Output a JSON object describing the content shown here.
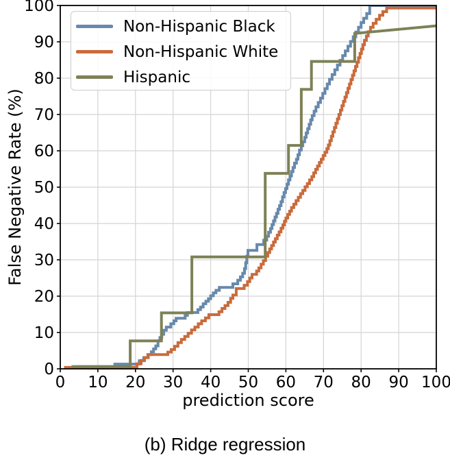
{
  "figure": {
    "caption": "(b) Ridge regression"
  },
  "chart_data": {
    "type": "line",
    "style": "step",
    "title": "",
    "xlabel": "prediction score",
    "ylabel": "False Negative Rate (%)",
    "xlim": [
      0,
      100
    ],
    "ylim": [
      0,
      100
    ],
    "xticks": [
      0,
      10,
      20,
      30,
      40,
      50,
      60,
      70,
      80,
      90,
      100
    ],
    "yticks": [
      0,
      10,
      20,
      30,
      40,
      50,
      60,
      70,
      80,
      90,
      100
    ],
    "grid": true,
    "grid_color": "#d4d4d4",
    "axis_color": "#000000",
    "legend_position": "upper-left",
    "series": [
      {
        "name": "Non-Hispanic Black",
        "color": "#6789ab",
        "points": [
          [
            4,
            0.6
          ],
          [
            14.5,
            1.3
          ],
          [
            21,
            2.2
          ],
          [
            22.2,
            3.1
          ],
          [
            23.4,
            3.9
          ],
          [
            24.2,
            4.7
          ],
          [
            24.8,
            5.5
          ],
          [
            25.4,
            6.3
          ],
          [
            26,
            7.7
          ],
          [
            26.5,
            8.6
          ],
          [
            27,
            9.5
          ],
          [
            27.5,
            10.6
          ],
          [
            28.2,
            11.5
          ],
          [
            29.4,
            12.4
          ],
          [
            30.2,
            13.2
          ],
          [
            30.8,
            13.9
          ],
          [
            33.2,
            14.7
          ],
          [
            33.8,
            15.5
          ],
          [
            36.6,
            16.3
          ],
          [
            37.3,
            17
          ],
          [
            38,
            17.9
          ],
          [
            38.7,
            18.6
          ],
          [
            39.4,
            19.3
          ],
          [
            40,
            20.1
          ],
          [
            40.7,
            20.9
          ],
          [
            41.4,
            21.6
          ],
          [
            42.3,
            22.4
          ],
          [
            45.9,
            23.4
          ],
          [
            47.2,
            24.4
          ],
          [
            47.9,
            25.3
          ],
          [
            48.5,
            26.3
          ],
          [
            49,
            27.6
          ],
          [
            49.3,
            29.2
          ],
          [
            49.6,
            31
          ],
          [
            49.9,
            32.6
          ],
          [
            52.3,
            34.2
          ],
          [
            54.1,
            35.4
          ],
          [
            54.9,
            36.5
          ],
          [
            55.4,
            37.6
          ],
          [
            55.9,
            38.6
          ],
          [
            56.3,
            39.7
          ],
          [
            56.7,
            40.7
          ],
          [
            57.1,
            41.8
          ],
          [
            57.5,
            42.8
          ],
          [
            57.9,
            43.9
          ],
          [
            58.3,
            44.9
          ],
          [
            58.7,
            46
          ],
          [
            59.1,
            47.3
          ],
          [
            59.5,
            48.5
          ],
          [
            59.9,
            49.6
          ],
          [
            60.3,
            50.8
          ],
          [
            60.7,
            52
          ],
          [
            61.1,
            53.1
          ],
          [
            61.5,
            54.3
          ],
          [
            61.9,
            55.4
          ],
          [
            62.3,
            56.6
          ],
          [
            62.8,
            57.7
          ],
          [
            63.2,
            58.9
          ],
          [
            63.6,
            60.2
          ],
          [
            64.1,
            61.4
          ],
          [
            64.5,
            62.5
          ],
          [
            65,
            63.7
          ],
          [
            65.4,
            64.9
          ],
          [
            65.8,
            66.1
          ],
          [
            66.2,
            67.3
          ],
          [
            66.6,
            68.5
          ],
          [
            67,
            69.7
          ],
          [
            67.5,
            70.9
          ],
          [
            68,
            72.1
          ],
          [
            68.6,
            73.3
          ],
          [
            69.2,
            74.5
          ],
          [
            69.8,
            75.8
          ],
          [
            70.4,
            77.1
          ],
          [
            71,
            78.4
          ],
          [
            71.6,
            79.7
          ],
          [
            72.3,
            81
          ],
          [
            73,
            82.3
          ],
          [
            73.7,
            83.6
          ],
          [
            74.4,
            84.9
          ],
          [
            75.1,
            86.2
          ],
          [
            75.8,
            87.5
          ],
          [
            76.5,
            88.8
          ],
          [
            77.2,
            90.1
          ],
          [
            77.9,
            91.4
          ],
          [
            78.6,
            92.7
          ],
          [
            79.3,
            94
          ],
          [
            80,
            95.3
          ],
          [
            80.7,
            96.5
          ],
          [
            81.5,
            97.8
          ],
          [
            82.3,
            100
          ],
          [
            100,
            100,
            "L"
          ]
        ]
      },
      {
        "name": "Non-Hispanic White",
        "color": "#c96b3c",
        "points": [
          [
            1,
            0.4
          ],
          [
            20.4,
            1.4
          ],
          [
            21.5,
            2.3
          ],
          [
            22.4,
            3.1
          ],
          [
            23.3,
            3.9
          ],
          [
            28.6,
            4.6
          ],
          [
            29.5,
            5.3
          ],
          [
            30.4,
            6.2
          ],
          [
            31.3,
            7.2
          ],
          [
            32.2,
            8.1
          ],
          [
            33.1,
            8.9
          ],
          [
            34,
            9.8
          ],
          [
            34.9,
            10.7
          ],
          [
            35.8,
            11.5
          ],
          [
            36.7,
            12.4
          ],
          [
            37.6,
            13.2
          ],
          [
            38.6,
            14
          ],
          [
            39.5,
            14.9
          ],
          [
            42.2,
            15.7
          ],
          [
            43,
            16.6
          ],
          [
            43.8,
            17.4
          ],
          [
            44.6,
            18.3
          ],
          [
            45.3,
            19.4
          ],
          [
            45.9,
            20.3
          ],
          [
            46.8,
            22.1
          ],
          [
            48.9,
            23
          ],
          [
            49.8,
            24
          ],
          [
            50.4,
            25
          ],
          [
            51,
            26
          ],
          [
            52.2,
            26.9
          ],
          [
            52.8,
            27.8
          ],
          [
            53.4,
            28.8
          ],
          [
            54,
            29.8
          ],
          [
            54.6,
            31
          ],
          [
            55.2,
            32
          ],
          [
            55.7,
            33
          ],
          [
            56.2,
            33.9
          ],
          [
            56.7,
            34.9
          ],
          [
            57.2,
            35.8
          ],
          [
            57.7,
            36.8
          ],
          [
            58.2,
            37.7
          ],
          [
            58.7,
            38.7
          ],
          [
            59.2,
            39.6
          ],
          [
            59.6,
            40.6
          ],
          [
            60,
            41.5
          ],
          [
            60.5,
            42.5
          ],
          [
            61,
            43.4
          ],
          [
            61.5,
            44.4
          ],
          [
            62.1,
            45.3
          ],
          [
            62.7,
            46.3
          ],
          [
            63.3,
            47.2
          ],
          [
            63.9,
            48.2
          ],
          [
            64.5,
            49.1
          ],
          [
            65.1,
            50.1
          ],
          [
            65.7,
            51
          ],
          [
            66.3,
            52
          ],
          [
            66.9,
            52.9
          ],
          [
            67.4,
            53.9
          ],
          [
            67.9,
            54.9
          ],
          [
            68.4,
            55.8
          ],
          [
            68.9,
            56.8
          ],
          [
            69.4,
            57.7
          ],
          [
            69.9,
            58.7
          ],
          [
            70.4,
            59.6
          ],
          [
            70.9,
            60.6
          ],
          [
            71.3,
            61.6
          ],
          [
            71.7,
            62.8
          ],
          [
            72.1,
            64
          ],
          [
            72.5,
            65.2
          ],
          [
            72.9,
            66.4
          ],
          [
            73.3,
            67.6
          ],
          [
            73.7,
            68.8
          ],
          [
            74.1,
            70
          ],
          [
            74.5,
            71.2
          ],
          [
            74.9,
            72.4
          ],
          [
            75.3,
            73.6
          ],
          [
            75.7,
            74.8
          ],
          [
            76.1,
            76
          ],
          [
            76.5,
            77.2
          ],
          [
            76.9,
            78.4
          ],
          [
            77.3,
            79.6
          ],
          [
            77.7,
            80.8
          ],
          [
            78.1,
            82
          ],
          [
            78.5,
            83.2
          ],
          [
            78.9,
            84.4
          ],
          [
            79.3,
            85.6
          ],
          [
            79.7,
            86.8
          ],
          [
            80.1,
            88
          ],
          [
            80.5,
            89.2
          ],
          [
            80.9,
            90.4
          ],
          [
            81.4,
            91.6
          ],
          [
            81.9,
            92.8
          ],
          [
            82.5,
            94
          ],
          [
            83.2,
            95.1
          ],
          [
            84,
            96.2
          ],
          [
            84.9,
            97.3
          ],
          [
            85.8,
            98.3
          ],
          [
            86.8,
            99.3
          ],
          [
            100,
            99.3,
            "L"
          ]
        ]
      },
      {
        "name": "Hispanic",
        "color": "#7d8156",
        "points": [
          [
            3,
            0.6
          ],
          [
            18.6,
            7.7
          ],
          [
            26.9,
            15.4
          ],
          [
            35,
            30.8
          ],
          [
            54.5,
            53.8
          ],
          [
            60.7,
            61.5
          ],
          [
            64.1,
            76.9
          ],
          [
            66.8,
            84.6
          ],
          [
            78.3,
            92.3
          ],
          [
            100,
            94.4,
            "L"
          ]
        ]
      }
    ]
  }
}
